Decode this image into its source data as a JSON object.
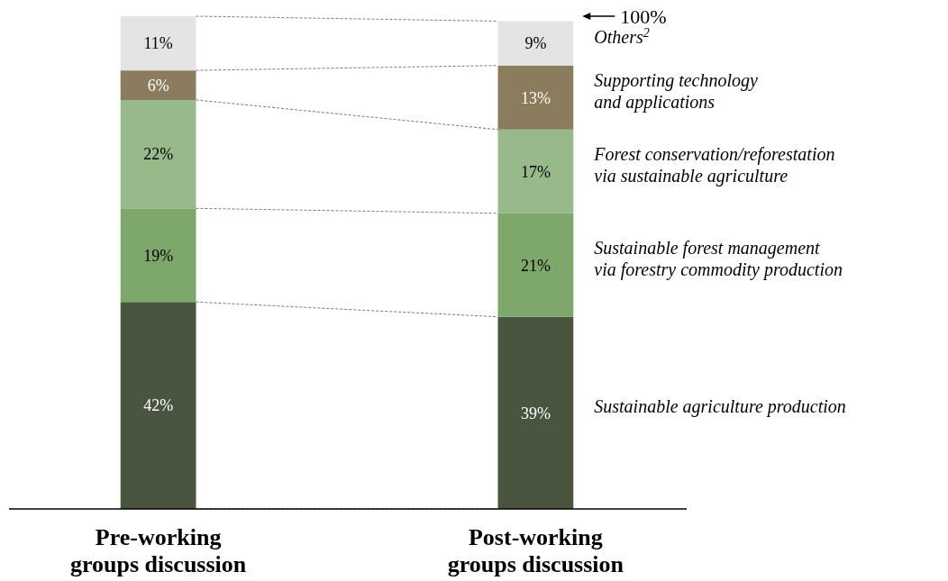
{
  "chart_data": {
    "type": "bar",
    "stacked": true,
    "categories": [
      "Pre-working\ngroups discussion",
      "Post-working\ngroups discussion"
    ],
    "ylim": [
      0,
      100
    ],
    "legend": "right",
    "annotations": [
      "100%"
    ],
    "series": [
      {
        "name": "Sustainable agriculture production",
        "color": "#4a5540",
        "values": [
          42,
          39
        ],
        "value_labels": [
          "42%",
          "39%"
        ]
      },
      {
        "name": "Sustainable forest management\nvia forestry commodity production",
        "color": "#7ea76c",
        "values": [
          19,
          21
        ],
        "value_labels": [
          "19%",
          "21%"
        ]
      },
      {
        "name": "Forest conservation/reforestation\nvia sustainable agriculture",
        "color": "#98b989",
        "values": [
          22,
          17
        ],
        "value_labels": [
          "22%",
          "17%"
        ]
      },
      {
        "name": "Supporting technology\nand applications",
        "color": "#8b7c5d",
        "values": [
          6,
          13
        ],
        "value_labels": [
          "6%",
          "13%"
        ]
      },
      {
        "name": "Others$^{2}$",
        "color": "#e4e4e4",
        "values": [
          11,
          9
        ],
        "value_labels": [
          "11%",
          "9%"
        ]
      }
    ]
  }
}
